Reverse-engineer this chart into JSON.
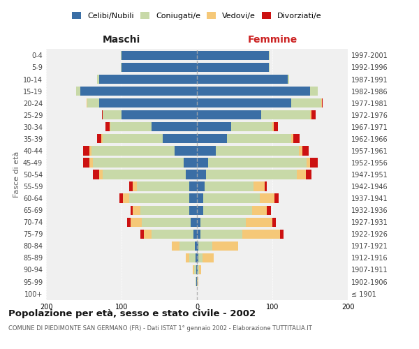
{
  "age_groups": [
    "100+",
    "95-99",
    "90-94",
    "85-89",
    "80-84",
    "75-79",
    "70-74",
    "65-69",
    "60-64",
    "55-59",
    "50-54",
    "45-49",
    "40-44",
    "35-39",
    "30-34",
    "25-29",
    "20-24",
    "15-19",
    "10-14",
    "5-9",
    "0-4"
  ],
  "birth_years": [
    "≤ 1901",
    "1902-1906",
    "1907-1911",
    "1912-1916",
    "1917-1921",
    "1922-1926",
    "1927-1931",
    "1932-1936",
    "1937-1941",
    "1942-1946",
    "1947-1951",
    "1952-1956",
    "1957-1961",
    "1962-1966",
    "1967-1971",
    "1972-1976",
    "1977-1981",
    "1982-1986",
    "1987-1991",
    "1992-1996",
    "1997-2001"
  ],
  "males": {
    "celibi": [
      0,
      1,
      1,
      2,
      3,
      5,
      8,
      10,
      10,
      10,
      15,
      18,
      30,
      45,
      60,
      100,
      130,
      155,
      130,
      100,
      100
    ],
    "coniugati": [
      0,
      1,
      3,
      8,
      20,
      55,
      65,
      65,
      80,
      70,
      110,
      120,
      110,
      80,
      55,
      25,
      15,
      5,
      2,
      1,
      1
    ],
    "vedovi": [
      0,
      0,
      2,
      5,
      10,
      10,
      15,
      10,
      8,
      5,
      5,
      5,
      3,
      2,
      1,
      0,
      1,
      0,
      0,
      0,
      0
    ],
    "divorziati": [
      0,
      0,
      0,
      0,
      0,
      5,
      5,
      3,
      5,
      5,
      8,
      8,
      8,
      5,
      5,
      1,
      0,
      0,
      0,
      0,
      0
    ]
  },
  "females": {
    "nubili": [
      0,
      0,
      1,
      2,
      2,
      5,
      5,
      8,
      8,
      10,
      12,
      15,
      25,
      40,
      45,
      85,
      125,
      150,
      120,
      95,
      95
    ],
    "coniugate": [
      0,
      1,
      2,
      5,
      18,
      55,
      60,
      65,
      75,
      65,
      120,
      130,
      110,
      85,
      55,
      65,
      40,
      10,
      2,
      1,
      1
    ],
    "vedove": [
      0,
      1,
      3,
      15,
      35,
      50,
      35,
      20,
      20,
      15,
      12,
      5,
      5,
      3,
      2,
      2,
      1,
      0,
      0,
      0,
      0
    ],
    "divorziate": [
      0,
      0,
      0,
      0,
      0,
      5,
      5,
      5,
      5,
      3,
      8,
      10,
      8,
      8,
      5,
      5,
      1,
      0,
      0,
      0,
      0
    ]
  },
  "colors": {
    "celibi": "#3a6ea5",
    "coniugati": "#c8d9a8",
    "vedovi": "#f5c878",
    "divorziati": "#cc1111"
  },
  "xlim": 200,
  "title": "Popolazione per età, sesso e stato civile - 2002",
  "subtitle": "COMUNE DI PIEDIMONTE SAN GERMANO (FR) - Dati ISTAT 1° gennaio 2002 - Elaborazione TUTTITALIA.IT",
  "ylabel_left": "Fasce di età",
  "maschi_label": "Maschi",
  "femmine_label": "Femmine",
  "legend_labels": [
    "Celibi/Nubili",
    "Coniugati/e",
    "Vedovi/e",
    "Divorziati/e"
  ]
}
